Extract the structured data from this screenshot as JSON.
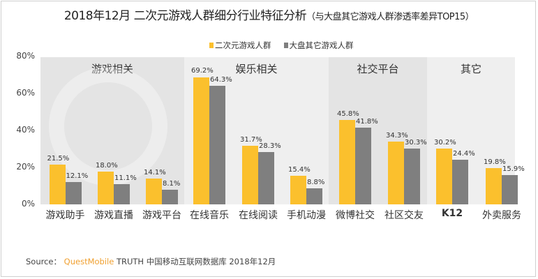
{
  "title": {
    "main": "2018年12月 二次元游戏人群细分行业特征分析",
    "sub": "（与大盘其它游戏人群渗透率差异TOP15）"
  },
  "legend": [
    {
      "label": "二次元游戏人群",
      "color": "#fbc02d"
    },
    {
      "label": "大盘其它游戏人群",
      "color": "#7f7f7f"
    }
  ],
  "yaxis": {
    "ticks": [
      "80%",
      "60%",
      "40%",
      "20%",
      "0%"
    ]
  },
  "sections": [
    {
      "label": "游戏相关",
      "color": "#e4e4e4"
    },
    {
      "label": "娱乐相关",
      "color": "#efefef"
    },
    {
      "label": "社交平台",
      "color": "#e4e4e4"
    },
    {
      "label": "其它",
      "color": "#efefef"
    }
  ],
  "source": {
    "prefix": "Source：",
    "brand": "QuestMobile",
    "rest": " TRUTH 中国移动互联网数据库 2018年12月"
  },
  "chart_data": {
    "type": "bar",
    "title": "2018年12月 二次元游戏人群细分行业特征分析（与大盘其它游戏人群渗透率差异TOP15）",
    "xlabel": "",
    "ylabel": "",
    "ylim": [
      0,
      80
    ],
    "yticks": [
      "0%",
      "20%",
      "40%",
      "60%",
      "80%"
    ],
    "legend_position": "top",
    "grid": false,
    "groups": [
      {
        "name": "游戏相关",
        "categories": [
          "游戏助手",
          "游戏直播",
          "游戏平台"
        ]
      },
      {
        "name": "娱乐相关",
        "categories": [
          "在线音乐",
          "在线阅读",
          "手机动漫"
        ]
      },
      {
        "name": "社交平台",
        "categories": [
          "微博社交",
          "社区交友"
        ]
      },
      {
        "name": "其它",
        "categories": [
          "K12",
          "外卖服务"
        ]
      }
    ],
    "categories": [
      "游戏助手",
      "游戏直播",
      "游戏平台",
      "在线音乐",
      "在线阅读",
      "手机动漫",
      "微博社交",
      "社区交友",
      "K12",
      "外卖服务"
    ],
    "series": [
      {
        "name": "二次元游戏人群",
        "color": "#fbc02d",
        "values": [
          21.5,
          18.0,
          14.1,
          69.2,
          31.7,
          15.4,
          45.8,
          34.3,
          30.2,
          19.8
        ],
        "labels": [
          "21.5%",
          "18.0%",
          "14.1%",
          "69.2%",
          "31.7%",
          "15.4%",
          "45.8%",
          "34.3%",
          "30.2%",
          "19.8%"
        ]
      },
      {
        "name": "大盘其它游戏人群",
        "color": "#7f7f7f",
        "values": [
          12.1,
          11.1,
          8.1,
          64.3,
          28.3,
          8.8,
          41.8,
          30.3,
          24.4,
          15.9
        ],
        "labels": [
          "12.1%",
          "11.1%",
          "8.1%",
          "64.3%",
          "28.3%",
          "8.8%",
          "41.8%",
          "30.3%",
          "24.4%",
          "15.9%"
        ]
      }
    ]
  }
}
